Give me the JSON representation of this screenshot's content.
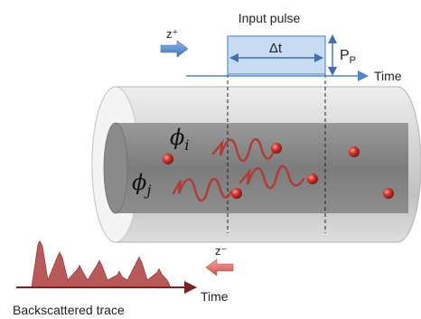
{
  "labels": {
    "input_pulse": "Input pulse",
    "z_plus": "z⁺",
    "delta_t": "Δt",
    "p_p_main": "P",
    "p_p_sub": "P",
    "time_top": "Time",
    "phi_i_main": "ϕ",
    "phi_i_sub": "i",
    "phi_j_main": "ϕ",
    "phi_j_sub": "j",
    "z_minus": "z⁻",
    "time_bottom": "Time",
    "backscattered": "Backscattered trace"
  },
  "colors": {
    "pulse_fill": "#c7dcf2",
    "pulse_edge": "#5b8fd0",
    "arrow_blue": "#4f86c6",
    "wave": "#b03a36",
    "scatterer": "#c0312b",
    "trace_fill": "#b85a5a",
    "trace_axis": "#7a2222",
    "arrow_red": "#d9706a",
    "fiber": "#d9d9d9"
  },
  "icons": {
    "scatterer": "sphere-icon",
    "direction": "arrow-icon"
  },
  "trace_peaks": [
    0.95,
    0.72,
    0.45,
    0.55,
    0.33,
    0.62,
    0.38
  ]
}
